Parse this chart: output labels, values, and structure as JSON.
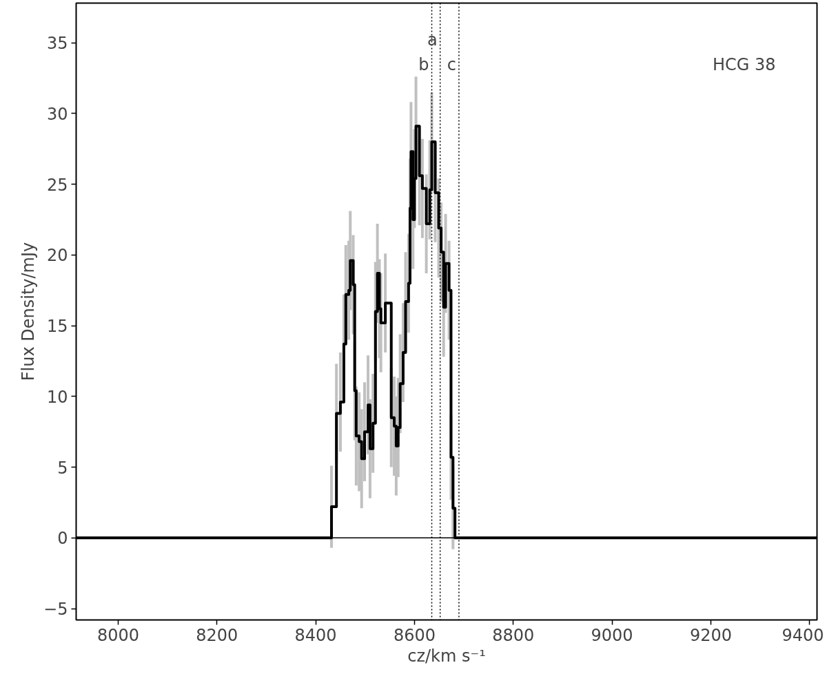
{
  "chart_data": {
    "type": "step",
    "xlabel": "cz/km s⁻¹",
    "ylabel": "Flux Density/mJy",
    "x": [
      7915,
      8432,
      8442,
      8450,
      8457,
      8461,
      8467,
      8470,
      8476,
      8479,
      8482,
      8488,
      8493,
      8499,
      8506,
      8510,
      8516,
      8521,
      8525,
      8529,
      8532,
      8541,
      8553,
      8559,
      8563,
      8567,
      8571,
      8577,
      8582,
      8588,
      8591,
      8593,
      8597,
      8600,
      8603,
      8610,
      8616,
      8624,
      8631,
      8635,
      8642,
      8649,
      8654,
      8659,
      8663,
      8670,
      8674,
      8678,
      8682,
      9415
    ],
    "values": [
      0,
      2.2,
      8.8,
      9.6,
      13.7,
      17.2,
      17.5,
      19.6,
      17.9,
      10.4,
      7.2,
      6.8,
      5.6,
      7.5,
      9.4,
      6.3,
      8.1,
      16.0,
      18.7,
      16.2,
      15.2,
      16.6,
      8.5,
      7.9,
      6.5,
      7.8,
      10.9,
      13.1,
      16.7,
      18.0,
      23.3,
      27.3,
      22.5,
      25.4,
      29.1,
      25.6,
      24.7,
      22.2,
      24.6,
      28.0,
      24.4,
      21.9,
      20.2,
      16.3,
      19.4,
      17.5,
      5.7,
      2.1,
      0,
      0
    ],
    "errors": [
      null,
      2.9,
      3.5,
      3.5,
      3.5,
      3.5,
      3.5,
      3.5,
      3.5,
      3.5,
      3.5,
      3.5,
      3.5,
      3.5,
      3.5,
      3.5,
      3.5,
      3.5,
      3.5,
      3.5,
      3.5,
      3.5,
      3.5,
      3.5,
      3.5,
      3.5,
      3.5,
      3.5,
      3.5,
      3.5,
      3.5,
      3.5,
      3.5,
      3.5,
      3.5,
      3.5,
      3.5,
      3.5,
      3.5,
      3.5,
      3.5,
      3.5,
      3.5,
      3.5,
      3.5,
      3.5,
      3.0,
      2.9,
      null,
      null
    ],
    "color": "#000000",
    "xlim": [
      7915,
      9415
    ],
    "ylim": [
      -5.8,
      37.8
    ],
    "xticks": [
      8000,
      8200,
      8400,
      8600,
      8800,
      9000,
      9200,
      9400
    ],
    "yticks": [
      {
        "value": -5,
        "label": "−5"
      },
      0,
      5,
      10,
      15,
      20,
      25,
      30,
      35
    ],
    "ref_lines": [
      {
        "axis": "y",
        "value": 0,
        "color": "#000000",
        "line_style": "solid"
      },
      {
        "axis": "x",
        "value": 8635,
        "color": "#000000",
        "line_style": "dotted",
        "label": "b"
      },
      {
        "axis": "x",
        "value": 8652,
        "color": "#000000",
        "line_style": "dotted",
        "label": "a"
      },
      {
        "axis": "x",
        "value": 8690,
        "color": "#000000",
        "line_style": "dotted",
        "label": "c"
      }
    ],
    "annotations": [
      "HCG 38"
    ],
    "grid": false
  }
}
